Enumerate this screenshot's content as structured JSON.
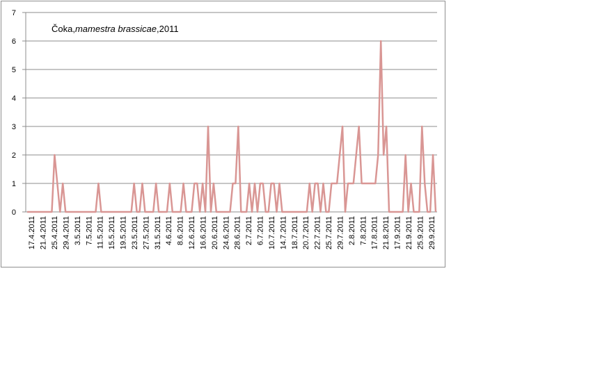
{
  "chart_data": {
    "type": "line",
    "title_prefix": "Čoka,",
    "title_species": "mamestra brassicae",
    "title_suffix": ",2011",
    "xlabel": "",
    "ylabel": "",
    "ylim": [
      0,
      7
    ],
    "yticks": [
      0,
      1,
      2,
      3,
      4,
      5,
      6,
      7
    ],
    "grid": true,
    "legend": "none",
    "line_color": "#d99694",
    "x_tick_labels": [
      "17.4.2011",
      "21.4.2011",
      "25.4.2011",
      "29.4.2011",
      "3.5.2011",
      "7.5.2011",
      "11.5.2011",
      "15.5.2011",
      "19.5.2011",
      "23.5.2011",
      "27.5.2011",
      "31.5.2011",
      "4.6.2011",
      "8.6.2011",
      "12.6.2011",
      "16.6.2011",
      "20.6.2011",
      "24.6.2011",
      "28.6.2011",
      "2.7.2011",
      "6.7.2011",
      "10.7.2011",
      "14.7.2011",
      "18.7.2011",
      "20.7.2011",
      "22.7.2011",
      "25.7.2011",
      "29.7.2011",
      "2.8.2011",
      "7.8.2011",
      "17.8.2011",
      "21.8.2011",
      "17.9.2011",
      "21.9.2011",
      "25.9.2011",
      "29.9.2011"
    ],
    "values": [
      0,
      0,
      0,
      0,
      0,
      0,
      0,
      0,
      0,
      0,
      2,
      1,
      0,
      1,
      0,
      0,
      0,
      0,
      0,
      0,
      0,
      0,
      0,
      0,
      0,
      0,
      1,
      0,
      0,
      0,
      0,
      0,
      0,
      0,
      0,
      0,
      0,
      0,
      0,
      1,
      0,
      0,
      1,
      0,
      0,
      0,
      0,
      1,
      0,
      0,
      0,
      0,
      1,
      0,
      0,
      0,
      0,
      1,
      0,
      0,
      0,
      1,
      1,
      0,
      1,
      0,
      3,
      0,
      1,
      0,
      0,
      0,
      0,
      0,
      0,
      1,
      1,
      3,
      0,
      0,
      0,
      1,
      0,
      1,
      0,
      1,
      1,
      0,
      0,
      1,
      1,
      0,
      1,
      0,
      0,
      0,
      0,
      0,
      0,
      0,
      0,
      0,
      0,
      1,
      0,
      1,
      1,
      0,
      1,
      0,
      0,
      1,
      1,
      1,
      2,
      3,
      0,
      1,
      1,
      1,
      2,
      3,
      1,
      1,
      1,
      1,
      1,
      1,
      2,
      6,
      2,
      3,
      0,
      0,
      0,
      0,
      0,
      0,
      2,
      0,
      1,
      0,
      0,
      0,
      3,
      1,
      0,
      0,
      2,
      0
    ]
  }
}
